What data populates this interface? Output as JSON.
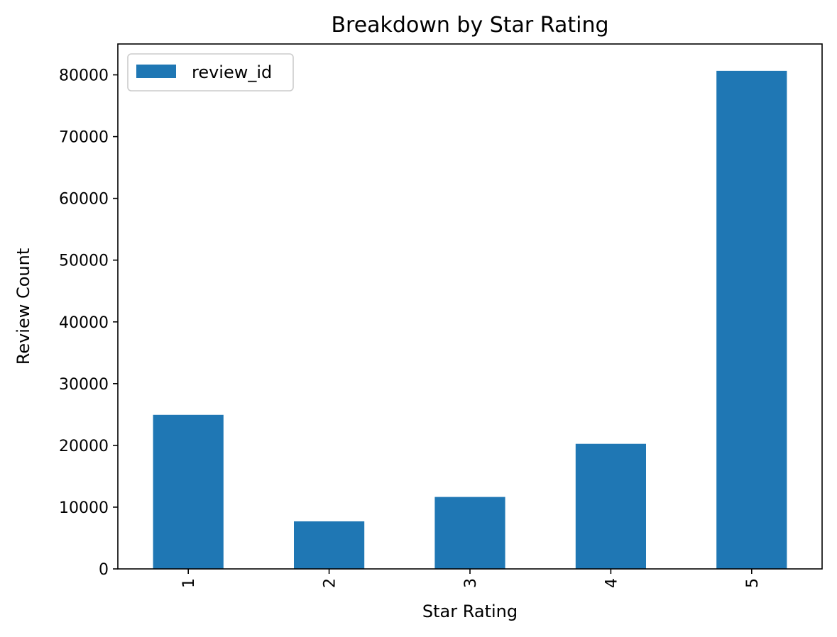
{
  "chart_data": {
    "type": "bar",
    "title": "Breakdown by Star Rating",
    "xlabel": "Star Rating",
    "ylabel": "Review Count",
    "categories": [
      "1",
      "2",
      "3",
      "4",
      "5"
    ],
    "series": [
      {
        "name": "review_id",
        "values": [
          24950,
          7700,
          11650,
          20250,
          80650
        ]
      }
    ],
    "ylim": [
      0,
      85000
    ],
    "yticks": [
      0,
      10000,
      20000,
      30000,
      40000,
      50000,
      60000,
      70000,
      80000
    ],
    "ytick_labels": [
      "0",
      "10000",
      "20000",
      "30000",
      "40000",
      "50000",
      "60000",
      "70000",
      "80000"
    ],
    "xtick_rotation": "vertical",
    "grid": false,
    "legend_position": "upper-left",
    "bar_color": "#1f77b4"
  }
}
